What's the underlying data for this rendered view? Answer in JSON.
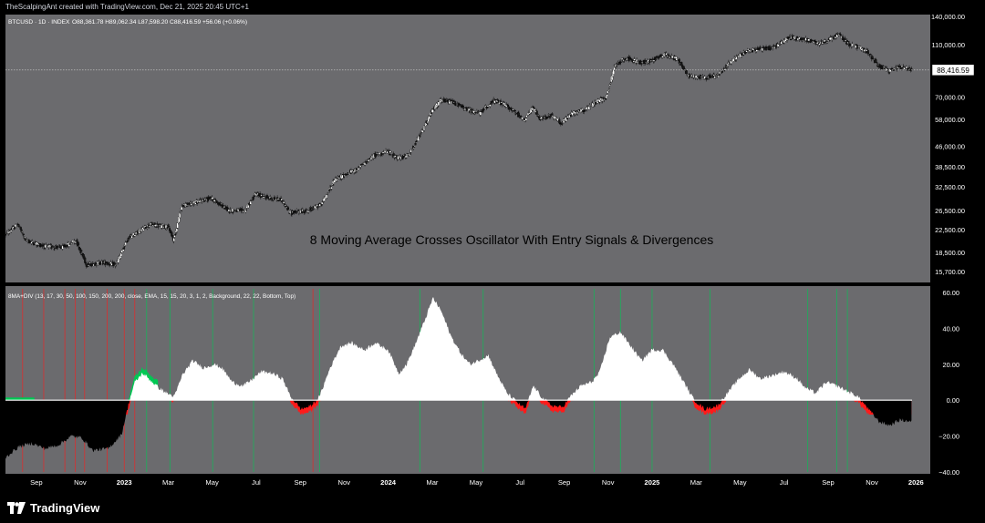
{
  "header": {
    "credit": "TheScalpingAnt created with TradingView.com, Dec 21, 2025 20:45 UTC+1"
  },
  "brand": {
    "name": "TradingView"
  },
  "colors": {
    "bg": "#6b6b6e",
    "frame": "#000000",
    "axis_text": "#ffffff",
    "green": "#00c853",
    "red": "#ff1a1a",
    "white": "#ffffff",
    "black": "#000000"
  },
  "chart_data": [
    {
      "type": "candlestick",
      "title": "BTCUSD · 1D · INDEX",
      "ohlc_label": "O88,361.78  H89,062.34  L87,598.20  C88,416.59  +56.06 (+0.06%)",
      "last_price_label": "88,416.59",
      "last_price": 88416.59,
      "center_caption": "8 Moving Average Crosses Oscillator With Entry Signals & Divergences",
      "y_scale": "log",
      "y_ticks": [
        140000,
        110000,
        88416.59,
        70000,
        58000,
        46000,
        38500,
        32500,
        26500,
        22500,
        18500,
        15700
      ],
      "y_tick_labels": [
        "140,000.00",
        "110,000.00",
        "",
        "70,000.00",
        "58,000.00",
        "46,000.00",
        "38,500.00",
        "32,500.00",
        "26,500.00",
        "22,500.00",
        "18,500.00",
        "15,700.00"
      ],
      "x_ticks": [
        "Sep",
        "Nov",
        "2023",
        "Mar",
        "May",
        "Jul",
        "Sep",
        "Nov",
        "2024",
        "Mar",
        "May",
        "Jul",
        "Sep",
        "Nov",
        "2025",
        "Mar",
        "May",
        "Jul",
        "Sep",
        "Nov",
        "2026"
      ],
      "x_tick_months": [
        2022.667,
        2022.833,
        2023.0,
        2023.167,
        2023.333,
        2023.5,
        2023.667,
        2023.833,
        2024.0,
        2024.167,
        2024.333,
        2024.5,
        2024.667,
        2024.833,
        2025.0,
        2025.167,
        2025.333,
        2025.5,
        2025.667,
        2025.833,
        2026.0
      ],
      "x_range": [
        2022.55,
        2025.985
      ],
      "price_path": [
        [
          2022.55,
          21500
        ],
        [
          2022.6,
          23500
        ],
        [
          2022.63,
          20500
        ],
        [
          2022.7,
          19500
        ],
        [
          2022.77,
          19300
        ],
        [
          2022.82,
          20500
        ],
        [
          2022.86,
          16600
        ],
        [
          2022.92,
          17000
        ],
        [
          2022.97,
          16600
        ],
        [
          2023.02,
          21000
        ],
        [
          2023.1,
          23500
        ],
        [
          2023.17,
          23000
        ],
        [
          2023.19,
          20500
        ],
        [
          2023.22,
          27500
        ],
        [
          2023.28,
          28500
        ],
        [
          2023.33,
          29500
        ],
        [
          2023.4,
          26500
        ],
        [
          2023.46,
          26500
        ],
        [
          2023.5,
          30500
        ],
        [
          2023.55,
          29500
        ],
        [
          2023.6,
          29000
        ],
        [
          2023.63,
          26000
        ],
        [
          2023.7,
          26500
        ],
        [
          2023.75,
          28000
        ],
        [
          2023.8,
          34500
        ],
        [
          2023.88,
          37500
        ],
        [
          2023.95,
          42500
        ],
        [
          2024.0,
          44000
        ],
        [
          2024.04,
          41500
        ],
        [
          2024.08,
          42500
        ],
        [
          2024.13,
          52000
        ],
        [
          2024.17,
          62500
        ],
        [
          2024.2,
          68000
        ],
        [
          2024.25,
          67000
        ],
        [
          2024.3,
          63000
        ],
        [
          2024.35,
          61000
        ],
        [
          2024.4,
          68000
        ],
        [
          2024.44,
          66000
        ],
        [
          2024.48,
          62000
        ],
        [
          2024.52,
          57500
        ],
        [
          2024.55,
          64000
        ],
        [
          2024.58,
          58000
        ],
        [
          2024.62,
          60000
        ],
        [
          2024.66,
          56000
        ],
        [
          2024.7,
          61000
        ],
        [
          2024.75,
          63000
        ],
        [
          2024.8,
          68000
        ],
        [
          2024.83,
          70000
        ],
        [
          2024.86,
          91000
        ],
        [
          2024.9,
          98000
        ],
        [
          2024.96,
          94000
        ],
        [
          2025.0,
          96000
        ],
        [
          2025.05,
          101000
        ],
        [
          2025.1,
          97000
        ],
        [
          2025.14,
          84000
        ],
        [
          2025.2,
          83000
        ],
        [
          2025.25,
          84000
        ],
        [
          2025.3,
          95000
        ],
        [
          2025.36,
          104000
        ],
        [
          2025.42,
          106000
        ],
        [
          2025.46,
          107000
        ],
        [
          2025.52,
          117000
        ],
        [
          2025.58,
          115000
        ],
        [
          2025.63,
          111000
        ],
        [
          2025.67,
          114000
        ],
        [
          2025.71,
          120000
        ],
        [
          2025.75,
          110000
        ],
        [
          2025.78,
          108000
        ],
        [
          2025.82,
          103000
        ],
        [
          2025.86,
          92000
        ],
        [
          2025.9,
          87500
        ],
        [
          2025.94,
          91000
        ],
        [
          2025.985,
          88416
        ]
      ]
    },
    {
      "type": "area",
      "title": "8MA+DIV (13, 17, 30, 50, 100, 150, 200, 200, close, EMA, 15, 15, 20, 3, 1, 2, Background, 22, 22, Bottom, Top)",
      "y_ticks": [
        60,
        40,
        20,
        0,
        -20,
        -40
      ],
      "y_tick_labels": [
        "60.00",
        "40.00",
        "20.00",
        "0.00",
        "−20.00",
        "−40.00"
      ],
      "ylim": [
        -40,
        60
      ],
      "series_white": [
        [
          2022.55,
          -32
        ],
        [
          2022.6,
          -26
        ],
        [
          2022.65,
          -24
        ],
        [
          2022.7,
          -27
        ],
        [
          2022.75,
          -25
        ],
        [
          2022.8,
          -20
        ],
        [
          2022.84,
          -21
        ],
        [
          2022.88,
          -28
        ],
        [
          2022.94,
          -27
        ],
        [
          2022.99,
          -19
        ],
        [
          2023.02,
          0
        ],
        [
          2023.04,
          10
        ],
        [
          2023.07,
          15
        ],
        [
          2023.1,
          11
        ],
        [
          2023.13,
          7
        ],
        [
          2023.16,
          4
        ],
        [
          2023.19,
          2
        ],
        [
          2023.22,
          14
        ],
        [
          2023.26,
          22
        ],
        [
          2023.3,
          18
        ],
        [
          2023.34,
          20
        ],
        [
          2023.37,
          18
        ],
        [
          2023.41,
          10
        ],
        [
          2023.45,
          8
        ],
        [
          2023.48,
          11
        ],
        [
          2023.52,
          16
        ],
        [
          2023.56,
          15
        ],
        [
          2023.6,
          12
        ],
        [
          2023.63,
          2
        ],
        [
          2023.67,
          -5
        ],
        [
          2023.71,
          -3
        ],
        [
          2023.74,
          2
        ],
        [
          2023.78,
          18
        ],
        [
          2023.82,
          30
        ],
        [
          2023.86,
          32
        ],
        [
          2023.91,
          28
        ],
        [
          2023.95,
          32
        ],
        [
          2024.0,
          28
        ],
        [
          2024.04,
          15
        ],
        [
          2024.07,
          20
        ],
        [
          2024.1,
          30
        ],
        [
          2024.14,
          45
        ],
        [
          2024.17,
          57
        ],
        [
          2024.2,
          50
        ],
        [
          2024.24,
          35
        ],
        [
          2024.28,
          25
        ],
        [
          2024.31,
          20
        ],
        [
          2024.34,
          22
        ],
        [
          2024.38,
          25
        ],
        [
          2024.41,
          15
        ],
        [
          2024.45,
          4
        ],
        [
          2024.48,
          0
        ],
        [
          2024.52,
          -5
        ],
        [
          2024.55,
          8
        ],
        [
          2024.58,
          2
        ],
        [
          2024.62,
          -3
        ],
        [
          2024.66,
          -4
        ],
        [
          2024.69,
          2
        ],
        [
          2024.73,
          8
        ],
        [
          2024.77,
          10
        ],
        [
          2024.8,
          15
        ],
        [
          2024.84,
          35
        ],
        [
          2024.88,
          38
        ],
        [
          2024.92,
          30
        ],
        [
          2024.96,
          22
        ],
        [
          2025.0,
          28
        ],
        [
          2025.04,
          28
        ],
        [
          2025.08,
          20
        ],
        [
          2025.12,
          10
        ],
        [
          2025.16,
          0
        ],
        [
          2025.2,
          -5
        ],
        [
          2025.25,
          -3
        ],
        [
          2025.28,
          3
        ],
        [
          2025.33,
          12
        ],
        [
          2025.37,
          17
        ],
        [
          2025.41,
          12
        ],
        [
          2025.46,
          14
        ],
        [
          2025.5,
          16
        ],
        [
          2025.55,
          12
        ],
        [
          2025.58,
          7
        ],
        [
          2025.62,
          4
        ],
        [
          2025.66,
          10
        ],
        [
          2025.7,
          8
        ],
        [
          2025.74,
          5
        ],
        [
          2025.78,
          2
        ],
        [
          2025.82,
          -5
        ],
        [
          2025.86,
          -12
        ],
        [
          2025.9,
          -14
        ],
        [
          2025.94,
          -11
        ],
        [
          2025.985,
          -12
        ]
      ],
      "green_markers": [
        2023.085,
        2023.173,
        2023.335,
        2023.49,
        2023.74,
        2024.12,
        2024.36,
        2024.78,
        2024.88,
        2025.0,
        2025.22,
        2025.59,
        2025.7,
        2025.74
      ],
      "red_markers": [
        2022.615,
        2022.695,
        2022.775,
        2022.815,
        2022.85,
        2022.935,
        2023.0,
        2023.04,
        2023.715
      ]
    }
  ]
}
